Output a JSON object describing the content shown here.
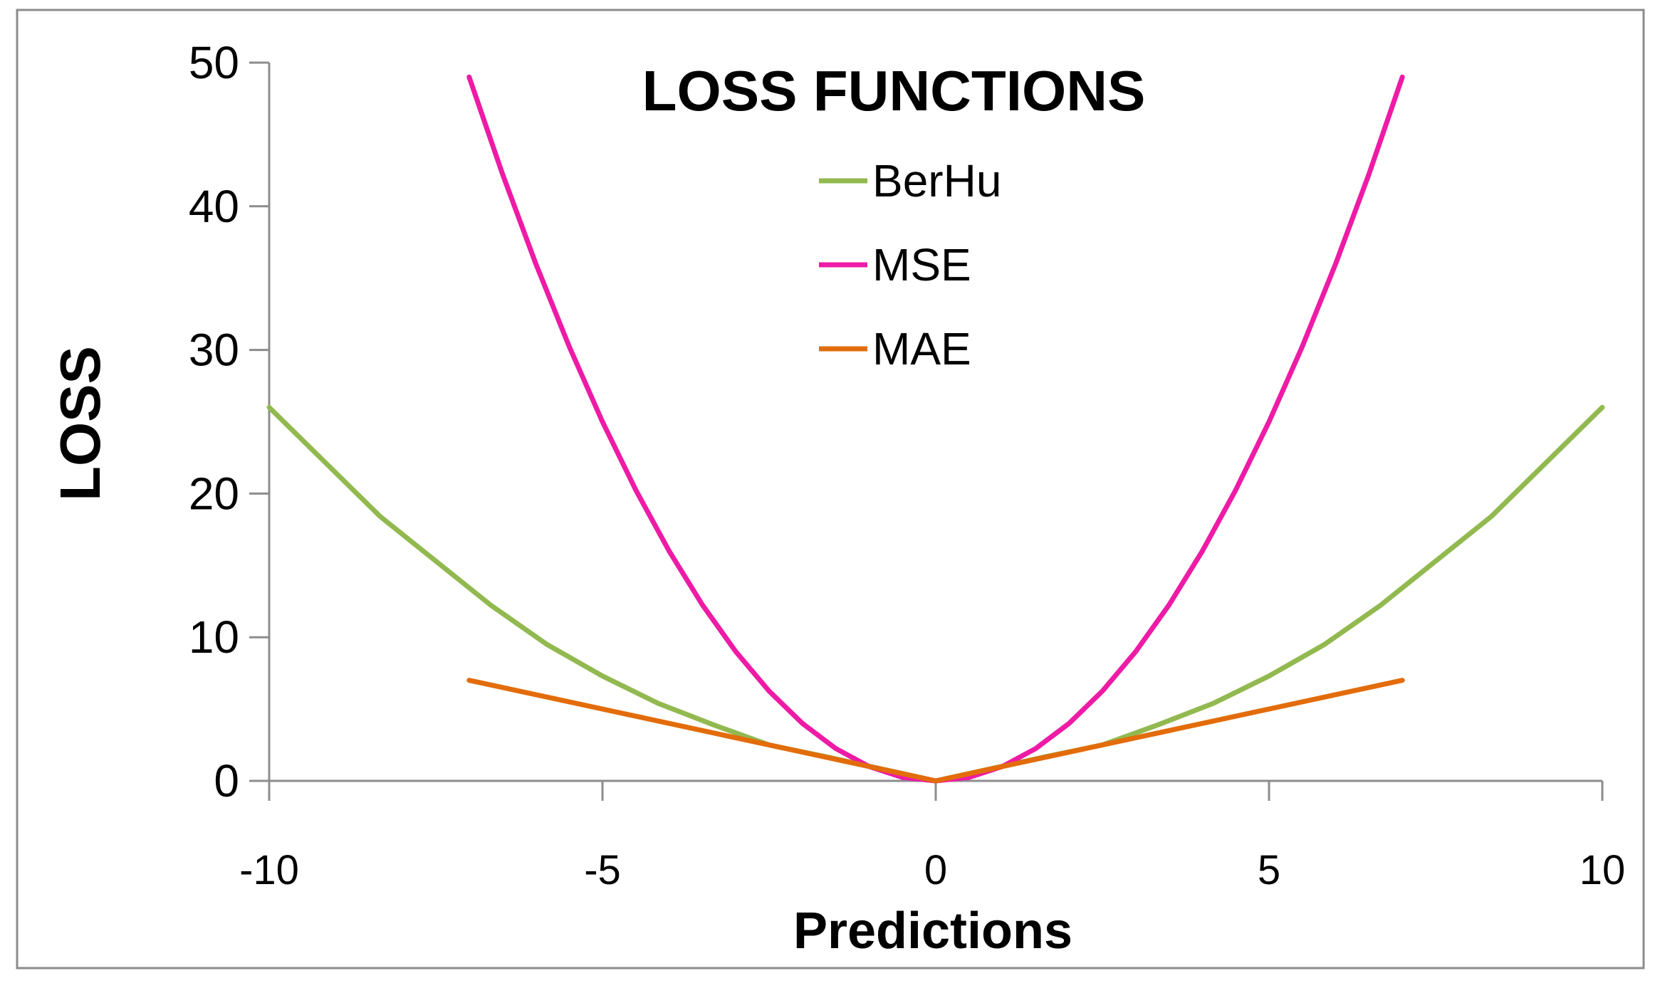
{
  "chart_data": {
    "type": "line",
    "title": "LOSS FUNCTIONS",
    "xlabel": "Predictions",
    "ylabel": "LOSS",
    "xlim": [
      -10,
      10
    ],
    "ylim": [
      0,
      50
    ],
    "x_ticks": [
      -10,
      -5,
      0,
      5,
      10
    ],
    "y_ticks": [
      0,
      10,
      20,
      30,
      40,
      50
    ],
    "x_tick_labels": [
      "-10",
      "-5",
      "0",
      "5",
      "10"
    ],
    "y_tick_labels": [
      "0",
      "10",
      "20",
      "30",
      "40",
      "50"
    ],
    "grid": false,
    "legend_position": "top-center",
    "series": [
      {
        "name": "BerHu",
        "color": "#92b94f",
        "x": [
          -10,
          -8.333,
          -6.667,
          -5.833,
          -5,
          -4.167,
          -3.333,
          -2.5,
          -1.667,
          -0.833,
          0,
          0.833,
          1.667,
          2.5,
          3.333,
          4.167,
          5,
          5.833,
          6.667,
          8.333,
          10
        ],
        "y": [
          26,
          18.4,
          12.2,
          9.5,
          7.3,
          5.4,
          3.9,
          2.5,
          1.7,
          0.85,
          0,
          0.85,
          1.7,
          2.5,
          3.9,
          5.4,
          7.3,
          9.5,
          12.2,
          18.4,
          26
        ]
      },
      {
        "name": "MSE",
        "color": "#ee1ba6",
        "x": [
          -7,
          -6.5,
          -6,
          -5.5,
          -5,
          -4.5,
          -4,
          -3.5,
          -3,
          -2.5,
          -2,
          -1.5,
          -1,
          -0.5,
          0,
          0.5,
          1,
          1.5,
          2,
          2.5,
          3,
          3.5,
          4,
          4.5,
          5,
          5.5,
          6,
          6.5,
          7
        ],
        "y": [
          49,
          42.25,
          36,
          30.25,
          25,
          20.25,
          16,
          12.25,
          9,
          6.25,
          4,
          2.25,
          1,
          0.25,
          0,
          0.25,
          1,
          2.25,
          4,
          6.25,
          9,
          12.25,
          16,
          20.25,
          25,
          30.25,
          36,
          42.25,
          49
        ]
      },
      {
        "name": "MAE",
        "color": "#e36c0a",
        "x": [
          -7,
          0,
          7
        ],
        "y": [
          7,
          0,
          7
        ]
      }
    ]
  }
}
